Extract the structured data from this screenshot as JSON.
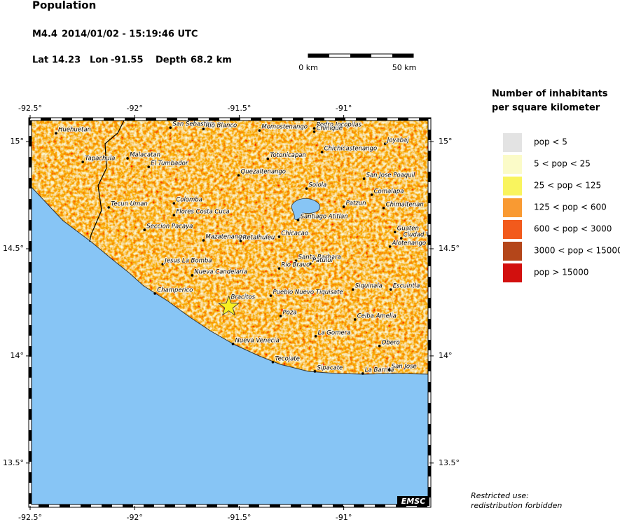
{
  "header": {
    "title": "Population",
    "magnitude": "M4.4",
    "datetime": "2014/01/02 - 15:19:46 UTC",
    "lat_label": "Lat",
    "lat": 14.23,
    "lon_label": "Lon",
    "lon": -91.55,
    "depth_label": "Depth",
    "depth": "68.2 km"
  },
  "scale_bar": {
    "start_label": "0 km",
    "end_label": "50 km"
  },
  "map": {
    "xlim": [
      -92.5,
      -90.59
    ],
    "ylim": [
      13.3,
      15.105
    ],
    "lon_ticks": [
      {
        "value": -92.5,
        "label": "-92.5°"
      },
      {
        "value": -92,
        "label": "-92°"
      },
      {
        "value": -91.5,
        "label": "-91.5°"
      },
      {
        "value": -91,
        "label": "-91°"
      }
    ],
    "lat_ticks": [
      {
        "value": 15,
        "label": "15°"
      },
      {
        "value": 14.5,
        "label": "14.5°"
      },
      {
        "value": 14,
        "label": "14°"
      },
      {
        "value": 13.5,
        "label": "13.5°"
      }
    ],
    "credit": "EMSC"
  },
  "cities": [
    {
      "name": "Huehuetan",
      "lon": -92.376,
      "lat": 15.039
    },
    {
      "name": "Tapachula",
      "lon": -92.248,
      "lat": 14.905
    },
    {
      "name": "Malacatan",
      "lon": -92.034,
      "lat": 14.922
    },
    {
      "name": "El Tumbador",
      "lon": -91.933,
      "lat": 14.882
    },
    {
      "name": "San Sebastian",
      "lon": -91.829,
      "lat": 15.065
    },
    {
      "name": "Rio Blanco",
      "lon": -91.671,
      "lat": 15.059
    },
    {
      "name": "Momostenango",
      "lon": -91.403,
      "lat": 15.052
    },
    {
      "name": "Pedro Jocopilas",
      "lon": -91.141,
      "lat": 15.062
    },
    {
      "name": "Chinique",
      "lon": -91.141,
      "lat": 15.046
    },
    {
      "name": "Joyabaj",
      "lon": -90.802,
      "lat": 14.99
    },
    {
      "name": "Totonicapan",
      "lon": -91.363,
      "lat": 14.92
    },
    {
      "name": "Chichicastenango",
      "lon": -91.104,
      "lat": 14.951
    },
    {
      "name": "Quezaltenango",
      "lon": -91.503,
      "lat": 14.843
    },
    {
      "name": "Solola",
      "lon": -91.178,
      "lat": 14.781
    },
    {
      "name": "San Jose Poaquil",
      "lon": -90.903,
      "lat": 14.827
    },
    {
      "name": "Comalapa",
      "lon": -90.866,
      "lat": 14.752
    },
    {
      "name": "Patzun",
      "lon": -91.0,
      "lat": 14.696
    },
    {
      "name": "Chimaltenan",
      "lon": -90.809,
      "lat": 14.69
    },
    {
      "name": "Tecun Uman",
      "lon": -92.124,
      "lat": 14.693
    },
    {
      "name": "Colomba",
      "lon": -91.812,
      "lat": 14.712
    },
    {
      "name": "Flores Costa Cuca",
      "lon": -91.812,
      "lat": 14.657
    },
    {
      "name": "Santiago Atitlan",
      "lon": -91.218,
      "lat": 14.634
    },
    {
      "name": "Seccion Pacaya",
      "lon": -91.953,
      "lat": 14.588
    },
    {
      "name": "Guaten",
      "lon": -90.755,
      "lat": 14.578
    },
    {
      "name": "Ciudad V",
      "lon": -90.725,
      "lat": 14.549
    },
    {
      "name": "Mazatenango",
      "lon": -91.671,
      "lat": 14.539
    },
    {
      "name": "Retalhuleu",
      "lon": -91.493,
      "lat": 14.536
    },
    {
      "name": "Chicacao",
      "lon": -91.309,
      "lat": 14.556
    },
    {
      "name": "Alotenango",
      "lon": -90.779,
      "lat": 14.51
    },
    {
      "name": "Jesus La Bomba",
      "lon": -91.866,
      "lat": 14.428
    },
    {
      "name": "Santa Barbara",
      "lon": -91.228,
      "lat": 14.444
    },
    {
      "name": "Patulul",
      "lon": -91.16,
      "lat": 14.43
    },
    {
      "name": "Rio Bravo",
      "lon": -91.309,
      "lat": 14.408
    },
    {
      "name": "Nueva Candelaria",
      "lon": -91.725,
      "lat": 14.376
    },
    {
      "name": "Champerico",
      "lon": -91.903,
      "lat": 14.291
    },
    {
      "name": "Bracitos",
      "lon": -91.55,
      "lat": 14.258
    },
    {
      "name": "Pueblo Nuevo Tiquisate",
      "lon": -91.349,
      "lat": 14.281
    },
    {
      "name": "Siquinala",
      "lon": -90.956,
      "lat": 14.31
    },
    {
      "name": "Escuintla",
      "lon": -90.775,
      "lat": 14.31
    },
    {
      "name": "Poza",
      "lon": -91.302,
      "lat": 14.186
    },
    {
      "name": "Ceiba Amelia",
      "lon": -90.946,
      "lat": 14.17
    },
    {
      "name": "La Gomera",
      "lon": -91.134,
      "lat": 14.092
    },
    {
      "name": "Nueva Venecia",
      "lon": -91.53,
      "lat": 14.056
    },
    {
      "name": "Obero",
      "lon": -90.829,
      "lat": 14.046
    },
    {
      "name": "Tecojate",
      "lon": -91.339,
      "lat": 13.971
    },
    {
      "name": "Sipacate",
      "lon": -91.138,
      "lat": 13.928
    },
    {
      "name": "La Barrita",
      "lon": -90.909,
      "lat": 13.918
    },
    {
      "name": "San Jose",
      "lon": -90.782,
      "lat": 13.935
    }
  ],
  "legend": {
    "title_lines": [
      "Number of inhabitants",
      "per square kilometer"
    ],
    "entries": [
      {
        "label": "pop < 5",
        "color": "#e3e3e3"
      },
      {
        "label": "5 < pop < 25",
        "color": "#fbfbc8"
      },
      {
        "label": "25 < pop < 125",
        "color": "#f9f45e"
      },
      {
        "label": "125 < pop < 600",
        "color": "#f99a32"
      },
      {
        "label": "600 < pop < 3000",
        "color": "#f25a1c"
      },
      {
        "label": "3000 < pop < 15000",
        "color": "#b4461a"
      },
      {
        "label": "pop > 15000",
        "color": "#d2100e"
      }
    ]
  },
  "footer": {
    "lines": [
      "Restricted use:",
      "redistribution forbidden"
    ]
  }
}
